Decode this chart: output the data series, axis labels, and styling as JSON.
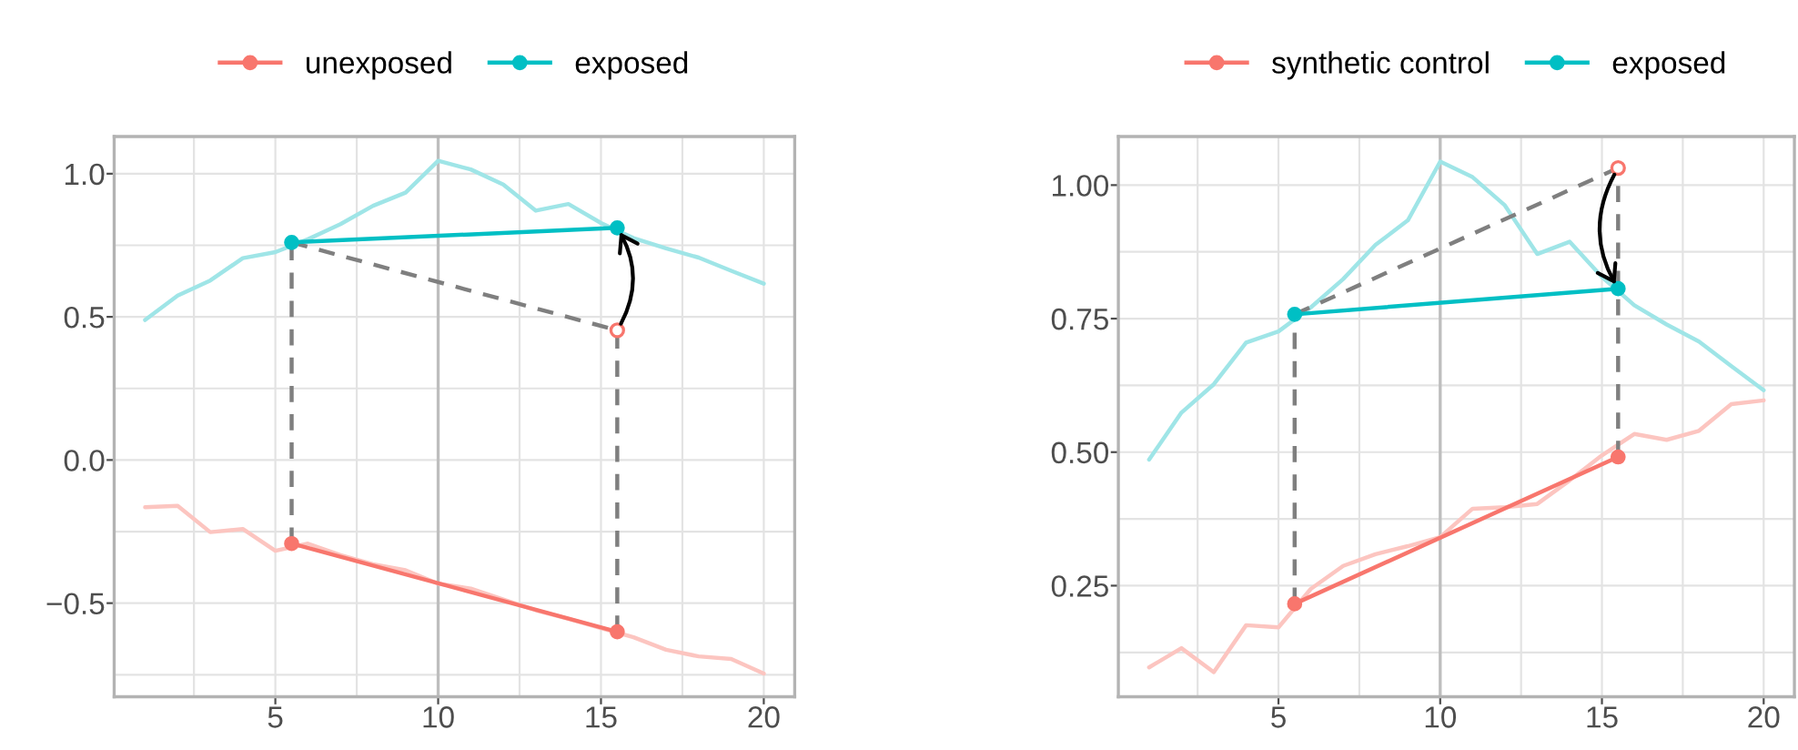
{
  "chart_data": [
    {
      "type": "line",
      "legend": "top",
      "grid": true,
      "xlim": [
        0.05,
        20.95
      ],
      "ylim": [
        -0.827,
        1.13
      ],
      "xticks": [
        {
          "value": 2.5,
          "label": null
        },
        5,
        {
          "value": 7.5,
          "label": null
        },
        10,
        {
          "value": 12.5,
          "label": null
        },
        15,
        {
          "value": 17.5,
          "label": null
        },
        20
      ],
      "yticks": [
        {
          "value": -0.75,
          "label": null
        },
        {
          "value": -0.5,
          "label": "−0.5"
        },
        {
          "value": -0.25,
          "label": null
        },
        {
          "value": 0,
          "label": "0.0"
        },
        {
          "value": 0.25,
          "label": null
        },
        {
          "value": 0.5,
          "label": "0.5"
        },
        {
          "value": 0.75,
          "label": null
        },
        {
          "value": 1,
          "label": "1.0"
        }
      ],
      "ref_lines": [
        {
          "axis": "x",
          "value": 10,
          "color": "#bebebe"
        }
      ],
      "series": [
        {
          "color": "#9fe5e7",
          "x": [
            1,
            2,
            3,
            4,
            5,
            6,
            7,
            8,
            9,
            10,
            11,
            12,
            13,
            14,
            15,
            16,
            17,
            18,
            19,
            20
          ],
          "values": [
            0.489,
            0.574,
            0.627,
            0.705,
            0.726,
            0.771,
            0.824,
            0.888,
            0.934,
            1.045,
            1.015,
            0.962,
            0.871,
            0.894,
            0.828,
            0.775,
            0.739,
            0.707,
            0.661,
            0.616
          ]
        },
        {
          "color": "#fcc5c0",
          "x": [
            1,
            2,
            3,
            4,
            5,
            6,
            7,
            8,
            9,
            10,
            11,
            12,
            13,
            14,
            15,
            16,
            17,
            18,
            19,
            20
          ],
          "values": [
            -0.165,
            -0.16,
            -0.252,
            -0.241,
            -0.317,
            -0.292,
            -0.332,
            -0.364,
            -0.385,
            -0.432,
            -0.449,
            -0.487,
            -0.525,
            -0.555,
            -0.587,
            -0.619,
            -0.663,
            -0.686,
            -0.695,
            -0.746
          ]
        },
        {
          "color": "#7f7f7f",
          "line_style": "dashed",
          "x": [
            5.5,
            5.5
          ],
          "values": [
            -0.292,
            0.76
          ]
        },
        {
          "color": "#7f7f7f",
          "line_style": "dashed",
          "x": [
            15.5,
            15.5
          ],
          "values": [
            -0.6,
            0.453
          ]
        },
        {
          "color": "#7f7f7f",
          "line_style": "dashed",
          "x": [
            5.5,
            15.5
          ],
          "values": [
            0.76,
            0.453
          ]
        },
        {
          "name": "unexposed",
          "color": "#f8766d",
          "marker": "circle",
          "x": [
            5.5,
            15.5
          ],
          "values": [
            -0.292,
            -0.6
          ]
        },
        {
          "name": "exposed",
          "color": "#00bfc4",
          "marker": "circle",
          "x": [
            5.5,
            15.5
          ],
          "values": [
            0.76,
            0.811
          ]
        },
        {
          "type": "scatter",
          "color": "#f8766d",
          "marker": "circle",
          "x": [
            15.5
          ],
          "values": [
            0.453
          ]
        }
      ]
    },
    {
      "type": "line",
      "legend": "top",
      "grid": true,
      "xlim": [
        0.05,
        20.95
      ],
      "ylim": [
        0.042,
        1.091
      ],
      "xticks": [
        {
          "value": 2.5,
          "label": null
        },
        5,
        {
          "value": 7.5,
          "label": null
        },
        10,
        {
          "value": 12.5,
          "label": null
        },
        15,
        {
          "value": 17.5,
          "label": null
        },
        20
      ],
      "yticks": [
        {
          "value": 0.125,
          "label": null
        },
        {
          "value": 0.25,
          "label": "0.25"
        },
        {
          "value": 0.375,
          "label": null
        },
        {
          "value": 0.5,
          "label": "0.50"
        },
        {
          "value": 0.625,
          "label": null
        },
        {
          "value": 0.75,
          "label": "0.75"
        },
        {
          "value": 0.875,
          "label": null
        },
        {
          "value": 1,
          "label": "1.00"
        }
      ],
      "ref_lines": [
        {
          "axis": "x",
          "value": 10,
          "color": "#bebebe"
        }
      ],
      "series": [
        {
          "color": "#9fe5e7",
          "x": [
            1,
            2,
            3,
            4,
            5,
            6,
            7,
            8,
            9,
            10,
            11,
            12,
            13,
            14,
            15,
            16,
            17,
            18,
            19,
            20
          ],
          "values": [
            0.486,
            0.574,
            0.627,
            0.705,
            0.726,
            0.771,
            0.824,
            0.888,
            0.934,
            1.044,
            1.015,
            0.962,
            0.871,
            0.894,
            0.828,
            0.775,
            0.739,
            0.707,
            0.661,
            0.616
          ]
        },
        {
          "color": "#fcc5c0",
          "x": [
            1,
            2,
            3,
            4,
            5,
            6,
            7,
            8,
            9,
            10,
            11,
            12,
            13,
            14,
            15,
            16,
            17,
            18,
            19,
            20
          ],
          "values": [
            0.097,
            0.133,
            0.088,
            0.176,
            0.172,
            0.244,
            0.287,
            0.309,
            0.324,
            0.341,
            0.394,
            0.397,
            0.403,
            0.447,
            0.494,
            0.534,
            0.523,
            0.54,
            0.59,
            0.597
          ]
        },
        {
          "color": "#7f7f7f",
          "line_style": "dashed",
          "x": [
            5.5,
            5.5
          ],
          "values": [
            0.216,
            0.758
          ]
        },
        {
          "color": "#7f7f7f",
          "line_style": "dashed",
          "x": [
            15.5,
            15.5
          ],
          "values": [
            0.491,
            1.032
          ]
        },
        {
          "color": "#7f7f7f",
          "line_style": "dashed",
          "x": [
            5.5,
            15.5
          ],
          "values": [
            0.758,
            1.032
          ]
        },
        {
          "name": "synthetic control",
          "color": "#f8766d",
          "marker": "circle",
          "x": [
            5.5,
            15.5
          ],
          "values": [
            0.216,
            0.491
          ]
        },
        {
          "name": "exposed",
          "color": "#00bfc4",
          "marker": "circle",
          "x": [
            5.5,
            15.5
          ],
          "values": [
            0.758,
            0.806
          ]
        },
        {
          "type": "scatter",
          "color": "#f8766d",
          "marker": "circle",
          "x": [
            15.5
          ],
          "values": [
            1.032
          ]
        }
      ]
    }
  ]
}
